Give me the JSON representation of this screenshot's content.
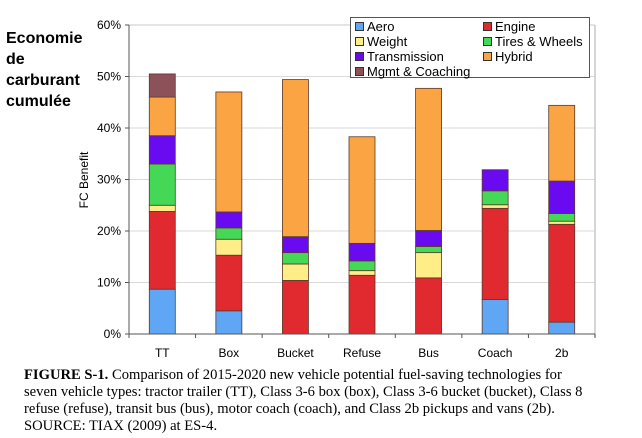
{
  "side_title": [
    "Economie",
    "de",
    "carburant",
    "cumulée"
  ],
  "chart_data": {
    "type": "bar",
    "stacked": true,
    "title": "",
    "xlabel": "",
    "ylabel": "FC Benefit",
    "ylim": [
      0,
      60
    ],
    "yticks": [
      "0%",
      "10%",
      "20%",
      "30%",
      "40%",
      "50%",
      "60%"
    ],
    "ytick_values": [
      0,
      10,
      20,
      30,
      40,
      50,
      60
    ],
    "grid": true,
    "legend_position": "top-right",
    "categories": [
      "TT",
      "Box",
      "Bucket",
      "Refuse",
      "Bus",
      "Coach",
      "2b"
    ],
    "series": [
      {
        "name": "Aero",
        "color": "#5FA6F5",
        "values": [
          8.7,
          4.5,
          0,
          0,
          0,
          6.7,
          2.3
        ]
      },
      {
        "name": "Engine",
        "color": "#E02A30",
        "values": [
          15.1,
          10.8,
          10.4,
          11.4,
          10.9,
          17.7,
          19.0
        ]
      },
      {
        "name": "Weight",
        "color": "#FFEE88",
        "values": [
          1.2,
          3.1,
          3.2,
          0.9,
          4.9,
          0.7,
          0.6
        ]
      },
      {
        "name": "Tires & Wheels",
        "color": "#45D856",
        "values": [
          8.0,
          2.2,
          2.2,
          1.9,
          1.2,
          2.7,
          1.5
        ]
      },
      {
        "name": "Transmission",
        "color": "#6A0AF0",
        "values": [
          5.5,
          3.1,
          3.1,
          3.4,
          3.1,
          4.1,
          6.3
        ]
      },
      {
        "name": "Hybrid",
        "color": "#FBA443",
        "values": [
          7.5,
          23.3,
          30.5,
          20.7,
          27.6,
          0,
          14.7
        ]
      },
      {
        "name": "Mgmt & Coaching",
        "color": "#8C5159",
        "values": [
          4.5,
          0,
          0,
          0,
          0,
          0,
          0
        ]
      }
    ],
    "legend_order": [
      "Aero",
      "Engine",
      "Weight",
      "Tires & Wheels",
      "Transmission",
      "Hybrid",
      "Mgmt & Coaching"
    ]
  },
  "caption": {
    "label": "FIGURE S-1.",
    "lines": [
      " Comparison of 2015-2020 new vehicle potential fuel-saving technologies for",
      "seven vehicle types: tractor trailer (TT), Class 3-6 box (box), Class 3-6 bucket (bucket), Class 8",
      "refuse (refuse), transit bus (bus), motor coach (coach), and Class 2b pickups and vans (2b).",
      "SOURCE: TIAX (2009) at ES-4."
    ]
  }
}
